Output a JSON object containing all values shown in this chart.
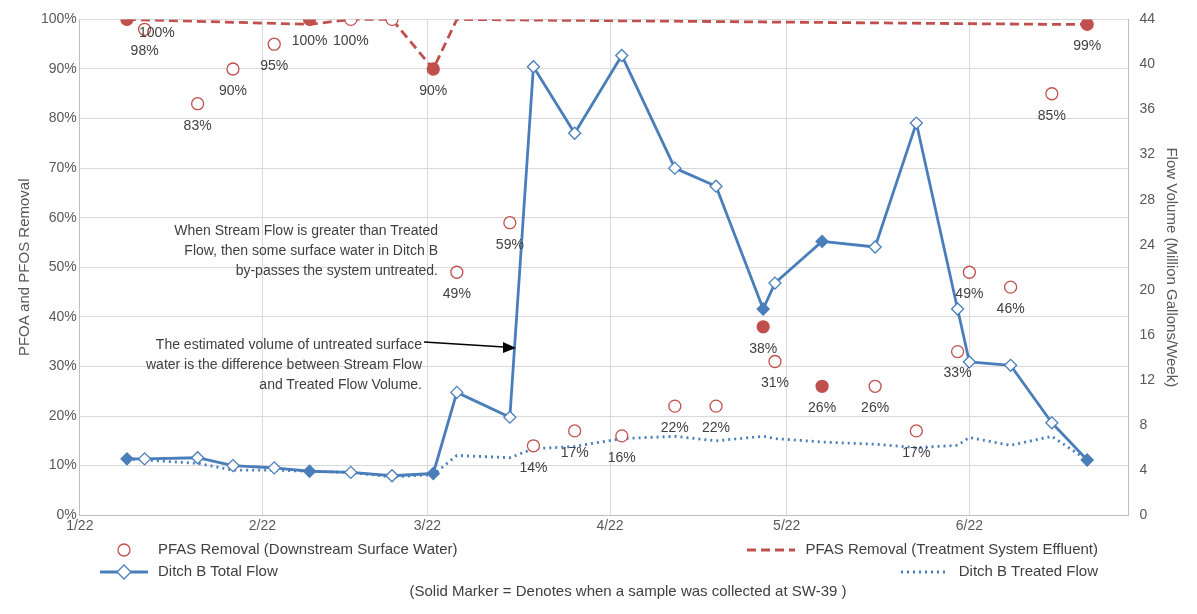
{
  "chart_data": {
    "type": "scatter",
    "xlim": [
      "2022-01-01",
      "2022-06-28"
    ],
    "xticks": [
      {
        "value": "2022-01-01",
        "label": "1/22"
      },
      {
        "value": "2022-02-01",
        "label": "2/22"
      },
      {
        "value": "2022-03-01",
        "label": "3/22"
      },
      {
        "value": "2022-04-01",
        "label": "4/22"
      },
      {
        "value": "2022-05-01",
        "label": "5/22"
      },
      {
        "value": "2022-06-01",
        "label": "6/22"
      }
    ],
    "ylabel": "PFOA and PFOS Removal",
    "y2label": "Flow Volume (Million Gallons/Week)",
    "ylim": [
      0,
      100
    ],
    "yticks": [
      {
        "value": 0,
        "label": "0%"
      },
      {
        "value": 10,
        "label": "10%"
      },
      {
        "value": 20,
        "label": "20%"
      },
      {
        "value": 30,
        "label": "30%"
      },
      {
        "value": 40,
        "label": "40%"
      },
      {
        "value": 50,
        "label": "50%"
      },
      {
        "value": 60,
        "label": "60%"
      },
      {
        "value": 70,
        "label": "70%"
      },
      {
        "value": 80,
        "label": "80%"
      },
      {
        "value": 90,
        "label": "90%"
      },
      {
        "value": 100,
        "label": "100%"
      }
    ],
    "y2lim": [
      0,
      44
    ],
    "y2ticks": [
      0,
      4,
      8,
      12,
      16,
      20,
      24,
      28,
      32,
      36,
      40,
      44
    ],
    "grid": true,
    "legend": "bottom",
    "series": [
      {
        "name": "PFAS Removal (Downstream Surface Water)",
        "marker": "circle",
        "color": "#c0504d",
        "x": [
          "2022-01-12",
          "2022-01-21",
          "2022-01-27",
          "2022-02-03",
          "2022-02-16",
          "2022-02-23",
          "2022-03-06",
          "2022-03-15",
          "2022-03-19",
          "2022-03-26",
          "2022-04-03",
          "2022-04-12",
          "2022-04-19",
          "2022-04-29",
          "2022-05-16",
          "2022-05-23",
          "2022-05-30",
          "2022-06-01",
          "2022-06-08",
          "2022-06-15"
        ],
        "values": [
          98,
          83,
          90,
          95,
          100,
          100,
          49,
          59,
          14,
          17,
          16,
          22,
          22,
          31,
          26,
          17,
          33,
          49,
          46,
          85
        ],
        "value_labels": [
          "98%",
          "83%",
          "90%",
          "95%",
          "100%",
          null,
          "49%",
          "59%",
          "14%",
          "17%",
          "16%",
          "22%",
          "22%",
          "31%",
          "26%",
          "17%",
          "33%",
          "49%",
          "46%",
          "85%"
        ]
      },
      {
        "name": "PFAS Removal (Treatment System Effluent)",
        "type": "line",
        "marker": "none",
        "line_style": "dashed",
        "color": "#c0504d",
        "x": [
          "2022-01-09",
          "2022-02-09",
          "2022-02-16",
          "2022-02-23",
          "2022-03-02",
          "2022-03-06",
          "2022-06-15",
          "2022-06-21"
        ],
        "values": [
          100,
          99,
          100,
          100,
          90,
          100,
          99,
          99
        ]
      },
      {
        "name": "Ditch B Total Flow",
        "type": "line",
        "marker": "diamond",
        "line_style": "solid",
        "color": "#4a7ebb",
        "axis": "y2",
        "x": [
          "2022-01-09",
          "2022-01-12",
          "2022-01-21",
          "2022-01-27",
          "2022-02-03",
          "2022-02-09",
          "2022-02-16",
          "2022-02-23",
          "2022-03-02",
          "2022-03-06",
          "2022-03-15",
          "2022-03-19",
          "2022-03-26",
          "2022-04-03",
          "2022-04-12",
          "2022-04-19",
          "2022-04-27",
          "2022-04-29",
          "2022-05-07",
          "2022-05-16",
          "2022-05-23",
          "2022-05-30",
          "2022-06-01",
          "2022-06-08",
          "2022-06-15",
          "2022-06-21"
        ],
        "values": [
          5.0,
          5.0,
          5.1,
          4.4,
          4.2,
          3.9,
          3.8,
          3.5,
          3.7,
          10.9,
          8.7,
          39.8,
          33.9,
          40.8,
          30.8,
          29.2,
          18.3,
          20.6,
          24.3,
          23.8,
          34.8,
          18.3,
          13.6,
          13.3,
          8.2,
          4.9
        ]
      },
      {
        "name": "Ditch B Treated Flow",
        "type": "line",
        "marker": "none",
        "line_style": "dotted",
        "color": "#4a7ebb",
        "axis": "y2",
        "x": [
          "2022-01-09",
          "2022-01-12",
          "2022-01-21",
          "2022-01-27",
          "2022-02-03",
          "2022-02-09",
          "2022-02-16",
          "2022-02-23",
          "2022-03-02",
          "2022-03-06",
          "2022-03-15",
          "2022-03-19",
          "2022-03-26",
          "2022-04-03",
          "2022-04-12",
          "2022-04-19",
          "2022-04-27",
          "2022-04-29",
          "2022-05-07",
          "2022-05-16",
          "2022-05-23",
          "2022-05-30",
          "2022-06-01",
          "2022-06-08",
          "2022-06-15",
          "2022-06-21"
        ],
        "values": [
          5.0,
          4.9,
          4.6,
          4.0,
          4.0,
          3.9,
          3.8,
          3.4,
          3.6,
          5.3,
          5.1,
          5.9,
          6.1,
          6.8,
          7.0,
          6.6,
          7.0,
          6.8,
          6.5,
          6.3,
          6.0,
          6.2,
          6.9,
          6.2,
          7.0,
          4.9
        ]
      },
      {
        "marker": "circle",
        "color": "#c0504d",
        "x": [
          "2022-01-09",
          "2022-02-09",
          "2022-03-02",
          "2022-04-27",
          "2022-05-07",
          "2022-06-21"
        ],
        "values": [
          100,
          100,
          90,
          38,
          26,
          99
        ],
        "value_labels": [
          "100%",
          "100%",
          "90%",
          "38%",
          "26%",
          "99%"
        ]
      },
      {
        "marker": "diamond",
        "color": "#4a7ebb",
        "axis": "y2",
        "x": [
          "2022-01-09",
          "2022-02-09",
          "2022-03-02",
          "2022-04-27",
          "2022-05-07",
          "2022-06-21"
        ],
        "values": [
          5.0,
          3.9,
          3.7,
          18.3,
          24.3,
          4.9
        ]
      }
    ],
    "annotations": [
      "When Stream Flow is greater than Treated Flow,  then some surface water in Ditch B by-passes the system untreated.",
      "The estimated volume of untreated surface water is the difference between Stream Flow and Treated Flow Volume.",
      "(Solid Marker = Denotes when a sample was collected at SW-39 )"
    ]
  }
}
